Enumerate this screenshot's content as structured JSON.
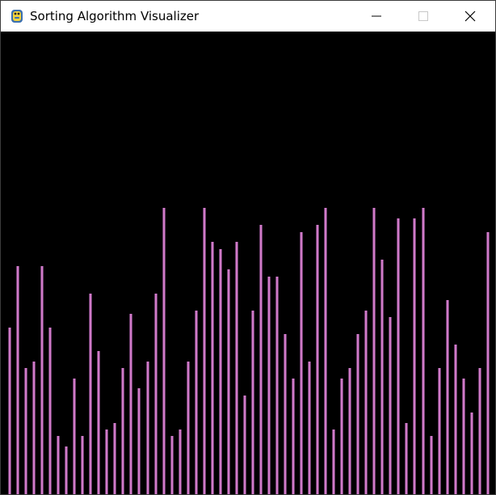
{
  "window": {
    "title": "Sorting Algorithm Visualizer",
    "icon": "python-snake-icon"
  },
  "controls": {
    "minimize_icon": "minimize-icon",
    "maximize_icon": "maximize-icon",
    "close_icon": "close-icon"
  },
  "visualizer": {
    "background_color": "#000000",
    "bar_color": "#d07ac8",
    "max_value": 100,
    "values": [
      49,
      67,
      37,
      39,
      67,
      49,
      17,
      14,
      34,
      17,
      59,
      42,
      19,
      21,
      37,
      53,
      31,
      39,
      59,
      84,
      17,
      19,
      39,
      54,
      84,
      74,
      72,
      66,
      74,
      29,
      54,
      79,
      64,
      64,
      47,
      34,
      77,
      39,
      79,
      84,
      19,
      34,
      37,
      47,
      54,
      84,
      69,
      52,
      81,
      21,
      81,
      84,
      17,
      37,
      57,
      44,
      34,
      24,
      37,
      77
    ]
  }
}
